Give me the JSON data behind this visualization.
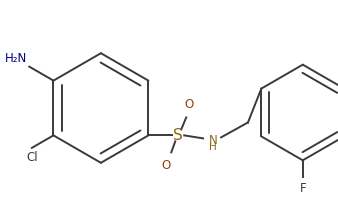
{
  "bg_color": "#ffffff",
  "line_color": "#3a3a3a",
  "atom_colors": {
    "N": "#000080",
    "O": "#8B4513",
    "S": "#8B6914",
    "Cl": "#3a3a3a",
    "F": "#3a3a3a",
    "NH2": "#000080",
    "NH": "#8B6914"
  },
  "figsize": [
    3.38,
    2.16
  ],
  "dpi": 100
}
